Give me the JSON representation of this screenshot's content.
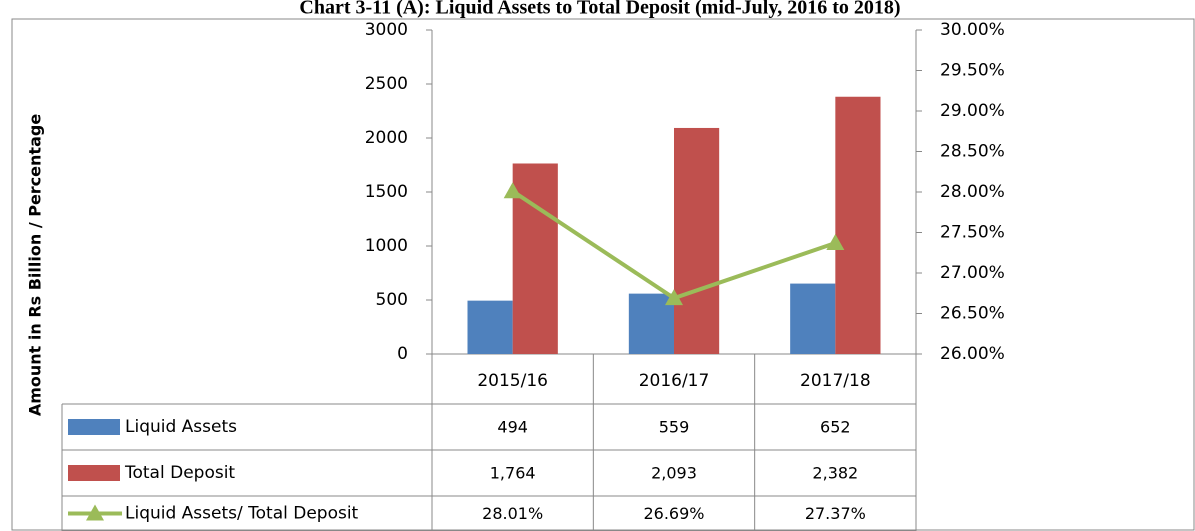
{
  "chart_data": {
    "type": "bar",
    "title": "Chart 3-11 (A): Liquid Assets to Total Deposit (mid-July, 2016 to 2018)",
    "y_label": "Amount in Rs Billion / Percentage",
    "categories": [
      "2015/16",
      "2016/17",
      "2017/18"
    ],
    "series": [
      {
        "name": "Liquid Assets",
        "type": "bar",
        "color": "#4f81bd",
        "values": [
          494,
          559,
          652
        ]
      },
      {
        "name": "Total Deposit",
        "type": "bar",
        "color": "#c0504d",
        "values": [
          1764,
          2093,
          2382
        ],
        "value_labels": [
          "1,764",
          "2,093",
          "2,382"
        ]
      },
      {
        "name": "Liquid Assets/ Total Deposit",
        "type": "line",
        "axis": "y2",
        "color": "#9bbb59",
        "values": [
          28.01,
          26.69,
          27.37
        ],
        "value_labels": [
          "28.01%",
          "26.69%",
          "27.37%"
        ]
      }
    ],
    "ylim": [
      0,
      3000
    ],
    "yticks": [
      0,
      500,
      1000,
      1500,
      2000,
      2500,
      3000
    ],
    "y2lim": [
      26,
      30
    ],
    "y2ticks": [
      {
        "value": 26,
        "label": "26.00%"
      },
      {
        "value": 26.5,
        "label": "26.50%"
      },
      {
        "value": 27,
        "label": "27.00%"
      },
      {
        "value": 27.5,
        "label": "27.50%"
      },
      {
        "value": 28,
        "label": "28.00%"
      },
      {
        "value": 28.5,
        "label": "28.50%"
      },
      {
        "value": 29,
        "label": "29.00%"
      },
      {
        "value": 29.5,
        "label": "29.50%"
      },
      {
        "value": 30,
        "label": "30.00%"
      }
    ],
    "grid": false,
    "data_table": true
  }
}
